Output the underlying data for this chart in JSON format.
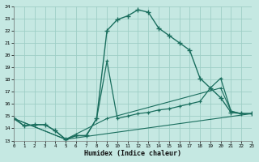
{
  "xlabel": "Humidex (Indice chaleur)",
  "bg_color": "#c5e8e2",
  "grid_color": "#9ecec6",
  "line_color": "#1a6e5e",
  "xlim": [
    0,
    23
  ],
  "ylim": [
    13,
    24
  ],
  "xticks": [
    0,
    1,
    2,
    3,
    4,
    5,
    6,
    7,
    8,
    9,
    10,
    11,
    12,
    13,
    14,
    15,
    16,
    17,
    18,
    19,
    20,
    21,
    22,
    23
  ],
  "yticks": [
    13,
    14,
    15,
    16,
    17,
    18,
    19,
    20,
    21,
    22,
    23,
    24
  ],
  "curve1_x": [
    0,
    1,
    2,
    3,
    4,
    5,
    6,
    7,
    8,
    9,
    10,
    11,
    12,
    13,
    14,
    15,
    16,
    17,
    18,
    19,
    20,
    21,
    22,
    23
  ],
  "curve1_y": [
    14.8,
    14.2,
    14.3,
    14.3,
    13.8,
    13.1,
    13.4,
    13.4,
    14.8,
    22.0,
    22.9,
    23.2,
    23.7,
    23.5,
    22.2,
    21.6,
    21.0,
    20.4,
    18.1,
    17.3,
    16.5,
    15.3,
    15.2,
    15.2
  ],
  "curve2_x": [
    0,
    1,
    2,
    3,
    4,
    5,
    6,
    7,
    8,
    9,
    10,
    11,
    12,
    13,
    14,
    15,
    16,
    17,
    18,
    19,
    20,
    21,
    22,
    23
  ],
  "curve2_y": [
    14.8,
    14.2,
    14.3,
    14.3,
    13.8,
    13.1,
    13.4,
    13.4,
    14.8,
    19.5,
    14.8,
    15.0,
    15.2,
    15.3,
    15.5,
    15.6,
    15.8,
    16.0,
    16.2,
    17.3,
    18.1,
    15.4,
    15.2,
    15.2
  ],
  "curve3_x": [
    0,
    5,
    9,
    20,
    21,
    22,
    23
  ],
  "curve3_y": [
    14.8,
    13.1,
    14.8,
    17.3,
    15.4,
    15.2,
    15.2
  ],
  "curve4_x": [
    0,
    5,
    23
  ],
  "curve4_y": [
    14.8,
    13.1,
    15.2
  ]
}
